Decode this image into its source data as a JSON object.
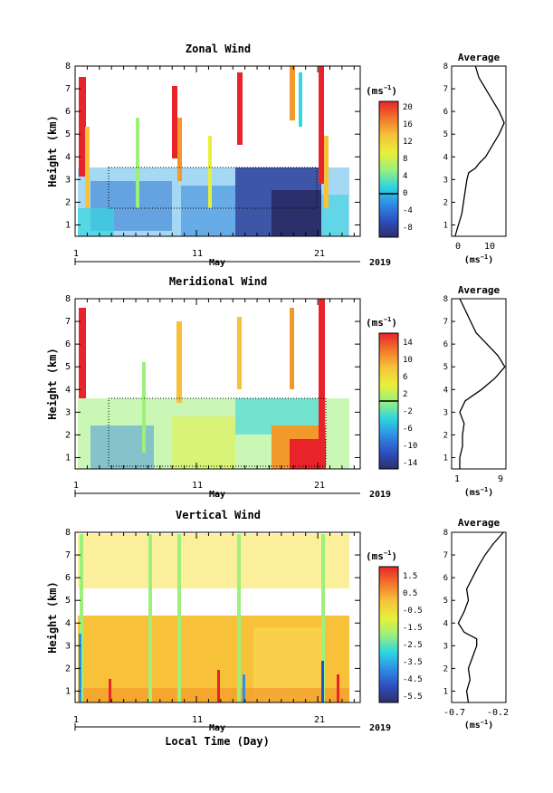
{
  "figure": {
    "xlabel": "Local Time (Day)",
    "month_label": "May",
    "year_label": "2019",
    "ylabel": "Height (km)",
    "unit": "(ms",
    "unit_sup": "−1",
    "unit_close": ")",
    "avg_title": "Average"
  },
  "chart_data": [
    {
      "type": "heatmap",
      "title": "Zonal Wind",
      "xlabel": "Local Time (Day)",
      "ylabel": "Height (km)",
      "xlim": [
        1,
        24.5
      ],
      "ylim": [
        0.5,
        8
      ],
      "xticks": [
        "1",
        "11",
        "21"
      ],
      "yticks": [
        "1",
        "2",
        "3",
        "4",
        "5",
        "6",
        "7",
        "8"
      ],
      "colorbar": {
        "unit": "(ms⁻¹)",
        "min": -10,
        "max": 22,
        "labels": [
          "20",
          "16",
          "12",
          "8",
          "4",
          "0",
          "-4",
          "-8"
        ],
        "zero_line": 0
      },
      "average": {
        "title": "Average",
        "xlim": [
          -1,
          15
        ],
        "xticks": [
          "0",
          "10"
        ],
        "xlabel": "(ms⁻¹)",
        "profile": [
          [
            0.5,
            0
          ],
          [
            1,
            1
          ],
          [
            1.5,
            2
          ],
          [
            2,
            2.5
          ],
          [
            2.5,
            3
          ],
          [
            3,
            3.5
          ],
          [
            3.3,
            4
          ],
          [
            3.5,
            6
          ],
          [
            3.7,
            7
          ],
          [
            4,
            9
          ],
          [
            4.5,
            11
          ],
          [
            5,
            13
          ],
          [
            5.5,
            14.5
          ],
          [
            6,
            13
          ],
          [
            6.5,
            11
          ],
          [
            7,
            9
          ],
          [
            7.5,
            7
          ],
          [
            8,
            6
          ]
        ]
      }
    },
    {
      "type": "heatmap",
      "title": "Meridional Wind",
      "xlabel": "Local Time (Day)",
      "ylabel": "Height (km)",
      "xlim": [
        1,
        24.5
      ],
      "ylim": [
        0.5,
        8
      ],
      "xticks": [
        "1",
        "11",
        "21"
      ],
      "yticks": [
        "1",
        "2",
        "3",
        "4",
        "5",
        "6",
        "7",
        "8"
      ],
      "colorbar": {
        "unit": "(ms⁻¹)",
        "min": -16,
        "max": 16,
        "labels": [
          "14",
          "10",
          "6",
          "2",
          "-2",
          "-6",
          "-10",
          "-14"
        ],
        "zero_line": 0
      },
      "average": {
        "title": "Average",
        "xlim": [
          0,
          10
        ],
        "xticks": [
          "1",
          "9"
        ],
        "xlabel": "(ms⁻¹)",
        "profile": [
          [
            0.5,
            1.5
          ],
          [
            1,
            1.5
          ],
          [
            1.5,
            2
          ],
          [
            2,
            2
          ],
          [
            2.5,
            2.3
          ],
          [
            3,
            1.5
          ],
          [
            3.5,
            2.5
          ],
          [
            4,
            5.5
          ],
          [
            4.5,
            8
          ],
          [
            5,
            9.8
          ],
          [
            5.5,
            8.5
          ],
          [
            6,
            6.5
          ],
          [
            6.5,
            4.5
          ],
          [
            7,
            3.5
          ],
          [
            7.5,
            2.5
          ],
          [
            8,
            1.5
          ]
        ]
      }
    },
    {
      "type": "heatmap",
      "title": "Vertical Wind",
      "xlabel": "Local Time (Day)",
      "ylabel": "Height (km)",
      "xlim": [
        1,
        24.5
      ],
      "ylim": [
        0.5,
        8
      ],
      "xticks": [
        "1",
        "11",
        "21"
      ],
      "yticks": [
        "1",
        "2",
        "3",
        "4",
        "5",
        "6",
        "7",
        "8"
      ],
      "colorbar": {
        "unit": "(ms⁻¹)",
        "min": -6,
        "max": 2,
        "labels": [
          "1.5",
          "0.5",
          "-0.5",
          "-1.5",
          "-2.5",
          "-3.5",
          "-4.5",
          "-5.5"
        ]
      },
      "average": {
        "title": "Average",
        "xlim": [
          -0.8,
          -0.15
        ],
        "xticks": [
          "-0.7",
          "-0.2"
        ],
        "xlabel": "(ms⁻¹)",
        "profile": [
          [
            0.5,
            -0.6
          ],
          [
            1,
            -0.62
          ],
          [
            1.5,
            -0.58
          ],
          [
            2,
            -0.6
          ],
          [
            2.5,
            -0.55
          ],
          [
            3,
            -0.5
          ],
          [
            3.3,
            -0.5
          ],
          [
            3.6,
            -0.65
          ],
          [
            4,
            -0.72
          ],
          [
            4.5,
            -0.65
          ],
          [
            5,
            -0.6
          ],
          [
            5.5,
            -0.62
          ],
          [
            6,
            -0.55
          ],
          [
            6.5,
            -0.48
          ],
          [
            7,
            -0.4
          ],
          [
            7.5,
            -0.3
          ],
          [
            8,
            -0.18
          ]
        ]
      }
    }
  ]
}
